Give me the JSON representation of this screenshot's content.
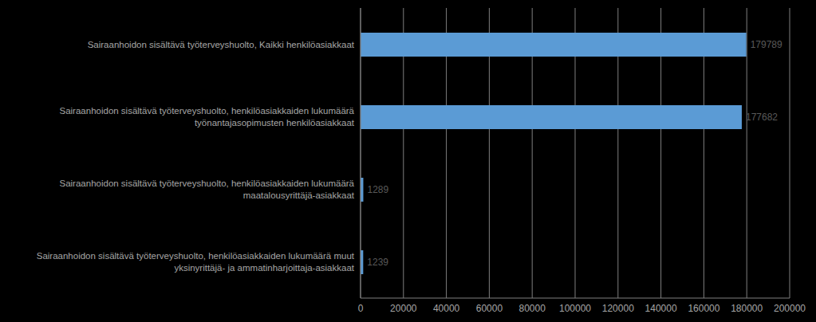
{
  "chart_data": {
    "type": "bar",
    "orientation": "horizontal",
    "categories": [
      "Sairaanhoidon sisältävä työterveyshuolto, Kaikki henkilöasiakkaat",
      "Sairaanhoidon sisältävä työterveyshuolto, henkilöasiakkaiden lukumäärä työnantajasopimusten henkilöasiakkaat",
      "Sairaanhoidon sisältävä työterveyshuolto, henkilöasiakkaiden lukumäärä maatalousyrittäjä-asiakkaat",
      "Sairaanhoidon sisältävä työterveyshuolto, henkilöasiakkaiden lukumäärä muut yksinyrittäjä- ja ammatinharjoittaja-asiakkaat"
    ],
    "values": [
      179789,
      177682,
      1289,
      1239
    ],
    "color": "#5b9bd5",
    "xlim": [
      0,
      200000
    ],
    "xticks": [
      0,
      20000,
      40000,
      60000,
      80000,
      100000,
      120000,
      140000,
      160000,
      180000,
      200000
    ],
    "grid": true,
    "data_labels": true
  }
}
